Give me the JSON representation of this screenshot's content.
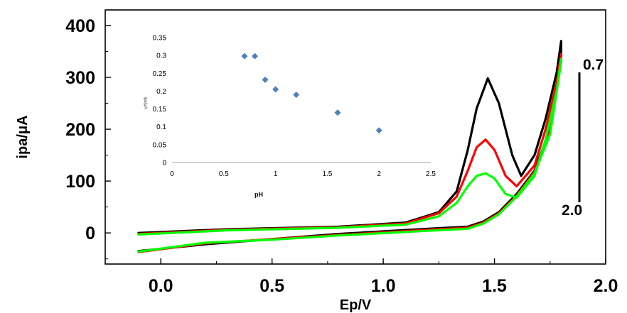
{
  "chart_data": [
    {
      "type": "line",
      "xlabel": "Ep/V",
      "ylabel": "ipa/μA",
      "xlim": [
        -0.25,
        2.0
      ],
      "ylim": [
        -60,
        430
      ],
      "x_ticks": [
        "0.0",
        "0.5",
        "1.0",
        "1.5",
        "2.0"
      ],
      "x_tick_values": [
        0.0,
        0.5,
        1.0,
        1.5,
        2.0
      ],
      "y_ticks": [
        "0",
        "100",
        "200",
        "300",
        "400"
      ],
      "y_tick_values": [
        0,
        100,
        200,
        300,
        400
      ],
      "grid": false,
      "legend": {
        "top_label": "0.7",
        "bottom_label": "2.0"
      },
      "series": [
        {
          "color": "#000000",
          "forward": [
            [
              -0.1,
              0
            ],
            [
              0.3,
              7
            ],
            [
              0.8,
              12
            ],
            [
              1.1,
              20
            ],
            [
              1.25,
              40
            ],
            [
              1.33,
              80
            ],
            [
              1.38,
              160
            ],
            [
              1.42,
              240
            ],
            [
              1.47,
              298
            ],
            [
              1.52,
              250
            ],
            [
              1.58,
              150
            ],
            [
              1.62,
              110
            ],
            [
              1.68,
              150
            ],
            [
              1.73,
              220
            ],
            [
              1.78,
              310
            ],
            [
              1.8,
              370
            ]
          ],
          "reverse": [
            [
              1.8,
              345
            ],
            [
              1.75,
              200
            ],
            [
              1.68,
              120
            ],
            [
              1.6,
              75
            ],
            [
              1.52,
              40
            ],
            [
              1.45,
              22
            ],
            [
              1.38,
              12
            ],
            [
              1.2,
              8
            ],
            [
              0.8,
              -2
            ],
            [
              0.5,
              -12
            ],
            [
              0.2,
              -22
            ],
            [
              -0.1,
              -35
            ]
          ]
        },
        {
          "color": "#ff0000",
          "forward": [
            [
              -0.1,
              -2
            ],
            [
              0.3,
              6
            ],
            [
              0.8,
              11
            ],
            [
              1.1,
              18
            ],
            [
              1.25,
              38
            ],
            [
              1.33,
              70
            ],
            [
              1.38,
              120
            ],
            [
              1.42,
              165
            ],
            [
              1.46,
              180
            ],
            [
              1.5,
              160
            ],
            [
              1.55,
              110
            ],
            [
              1.6,
              90
            ],
            [
              1.68,
              130
            ],
            [
              1.73,
              200
            ],
            [
              1.78,
              290
            ],
            [
              1.8,
              345
            ]
          ],
          "reverse": [
            [
              1.8,
              340
            ],
            [
              1.75,
              195
            ],
            [
              1.68,
              118
            ],
            [
              1.6,
              72
            ],
            [
              1.52,
              38
            ],
            [
              1.45,
              20
            ],
            [
              1.38,
              10
            ],
            [
              1.2,
              6
            ],
            [
              0.8,
              -4
            ],
            [
              0.5,
              -12
            ],
            [
              0.2,
              -20
            ],
            [
              -0.1,
              -37
            ]
          ]
        },
        {
          "color": "#00ff00",
          "forward": [
            [
              -0.1,
              -3
            ],
            [
              0.3,
              5
            ],
            [
              0.8,
              10
            ],
            [
              1.1,
              16
            ],
            [
              1.25,
              32
            ],
            [
              1.33,
              58
            ],
            [
              1.38,
              90
            ],
            [
              1.42,
              110
            ],
            [
              1.46,
              115
            ],
            [
              1.5,
              105
            ],
            [
              1.55,
              75
            ],
            [
              1.6,
              68
            ],
            [
              1.68,
              110
            ],
            [
              1.73,
              180
            ],
            [
              1.78,
              275
            ],
            [
              1.8,
              335
            ]
          ],
          "reverse": [
            [
              1.8,
              330
            ],
            [
              1.75,
              190
            ],
            [
              1.68,
              115
            ],
            [
              1.6,
              70
            ],
            [
              1.52,
              36
            ],
            [
              1.45,
              18
            ],
            [
              1.38,
              8
            ],
            [
              1.2,
              4
            ],
            [
              0.8,
              -5
            ],
            [
              0.5,
              -13
            ],
            [
              0.2,
              -19
            ],
            [
              -0.1,
              -36
            ]
          ]
        }
      ]
    },
    {
      "type": "scatter",
      "xlabel": "pH",
      "ylabel": "ipa/μA",
      "xlim": [
        0,
        2.5
      ],
      "ylim": [
        0,
        0.35
      ],
      "x_ticks": [
        "0",
        "0.5",
        "1",
        "1.5",
        "2",
        "2.5"
      ],
      "x_tick_values": [
        0,
        0.5,
        1,
        1.5,
        2,
        2.5
      ],
      "y_ticks": [
        "0",
        "0.05",
        "0.1",
        "0.15",
        "0.2",
        "0.25",
        "0.3",
        "0.35"
      ],
      "y_tick_values": [
        0,
        0.05,
        0.1,
        0.15,
        0.2,
        0.25,
        0.3,
        0.35
      ],
      "marker_color": "#4f81bd",
      "x": [
        0.7,
        0.8,
        0.9,
        1.0,
        1.2,
        1.6,
        2.0
      ],
      "y": [
        0.298,
        0.298,
        0.232,
        0.205,
        0.19,
        0.14,
        0.09
      ]
    }
  ]
}
